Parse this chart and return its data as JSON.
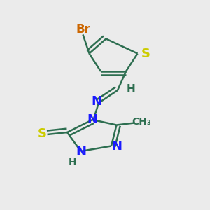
{
  "bg_color": "#ebebeb",
  "bond_color": "#2d6e50",
  "bond_width": 1.8,
  "figsize": [
    3.0,
    3.0
  ],
  "dpi": 100,
  "atoms": {
    "Br": {
      "color": "#cc6600"
    },
    "S": {
      "color": "#cccc00"
    },
    "N": {
      "color": "#1a1aff"
    },
    "C": {
      "color": "#2d6e50"
    },
    "H": {
      "color": "#2d6e50"
    }
  }
}
